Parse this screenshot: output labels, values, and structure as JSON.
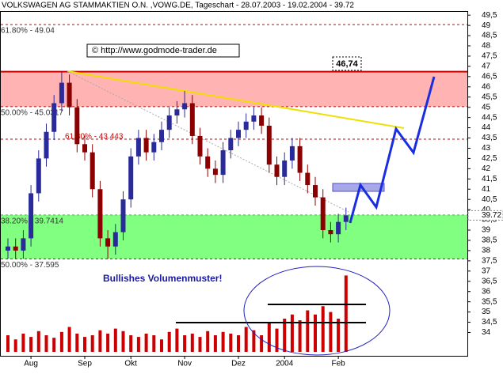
{
  "chart_data": {
    "type": "candlestick",
    "title": "VOLKSWAGEN AG STAMMAKTIEN O.N. ,VOWG.DE, Tageschart - 28.07.2003 - 19.02.2004 - 39.72",
    "copyright": "© http://www.godmode-trader.de",
    "annotation": "Bullishes Volumenmuster!",
    "target_label": "46,74",
    "last_value": 39.72,
    "up_color": "#2a2a9a",
    "down_color": "#8b0000",
    "volume_color": "#cc0000",
    "open": [
      38.0,
      38.2,
      38.0,
      38.6,
      40.8,
      42.5,
      43.8,
      45.2,
      46.2,
      45.0,
      43.2,
      42.8,
      41.0,
      38.6,
      38.2,
      38.9,
      40.5,
      42.6,
      43.5,
      42.8,
      43.3,
      43.9,
      44.6,
      44.9,
      45.2,
      43.6,
      42.6,
      42.0,
      41.7,
      42.9,
      43.5,
      43.9,
      44.3,
      44.6,
      44.1,
      42.2,
      41.6,
      42.4,
      43.1,
      41.8,
      41.2,
      40.6,
      39.0,
      38.8,
      39.4
    ],
    "high": [
      38.6,
      38.6,
      39.0,
      41.2,
      42.9,
      44.2,
      45.6,
      46.74,
      46.6,
      45.4,
      43.6,
      43.2,
      41.4,
      39.0,
      39.3,
      40.9,
      43.0,
      43.9,
      43.9,
      43.7,
      44.3,
      45.0,
      45.3,
      45.8,
      45.6,
      44.0,
      43.0,
      42.4,
      43.3,
      43.9,
      44.3,
      44.7,
      45.0,
      45.0,
      44.5,
      42.6,
      42.8,
      43.5,
      43.5,
      42.2,
      41.6,
      41.0,
      39.4,
      39.8,
      40.1
    ],
    "low": [
      37.6,
      37.6,
      37.6,
      38.2,
      40.4,
      42.1,
      43.4,
      44.8,
      44.6,
      42.8,
      42.4,
      40.6,
      38.2,
      37.6,
      37.8,
      38.5,
      40.1,
      42.2,
      42.4,
      42.4,
      42.9,
      43.5,
      44.2,
      44.5,
      43.2,
      42.2,
      41.6,
      41.3,
      41.3,
      42.5,
      43.1,
      43.5,
      43.9,
      43.7,
      41.8,
      41.2,
      41.2,
      42.0,
      41.4,
      40.8,
      40.2,
      38.6,
      38.4,
      38.4,
      39.0
    ],
    "close": [
      38.2,
      38.0,
      38.6,
      40.8,
      42.5,
      43.8,
      45.2,
      46.2,
      45.0,
      43.2,
      42.8,
      41.0,
      38.6,
      38.2,
      38.9,
      40.5,
      42.6,
      43.5,
      42.8,
      43.3,
      43.9,
      44.6,
      44.9,
      45.2,
      43.6,
      42.6,
      42.0,
      41.7,
      42.9,
      43.5,
      43.9,
      44.3,
      44.6,
      44.1,
      42.2,
      41.6,
      42.4,
      43.1,
      41.8,
      41.2,
      40.6,
      39.0,
      38.8,
      39.4,
      39.72
    ],
    "volume": [
      20,
      15,
      22,
      18,
      25,
      20,
      17,
      24,
      30,
      22,
      18,
      20,
      26,
      22,
      28,
      25,
      20,
      18,
      22,
      20,
      15,
      24,
      28,
      20,
      22,
      18,
      25,
      20,
      24,
      22,
      20,
      30,
      26,
      20,
      35,
      28,
      40,
      45,
      38,
      50,
      45,
      55,
      48,
      40,
      92
    ],
    "volume_lim": [
      0,
      100
    ],
    "xticks": [
      {
        "value": 3,
        "label": "Aug"
      },
      {
        "value": 10,
        "label": "Sep"
      },
      {
        "value": 16,
        "label": "Okt"
      },
      {
        "value": 23,
        "label": "Nov"
      },
      {
        "value": 30,
        "label": "Dez"
      },
      {
        "value": 36,
        "label": "2004"
      },
      {
        "value": 43,
        "label": "Feb"
      }
    ],
    "ylim": [
      32.86,
      49.7
    ],
    "yticks": [
      {
        "value": 49.5,
        "label": "49,5"
      },
      49,
      {
        "value": 48.5,
        "label": "48,5"
      },
      48,
      {
        "value": 47.5,
        "label": "47,5"
      },
      47,
      {
        "value": 46.5,
        "label": "46,5"
      },
      46,
      {
        "value": 45.5,
        "label": "45,5"
      },
      45,
      {
        "value": 44.5,
        "label": "44,5"
      },
      44,
      {
        "value": 43.5,
        "label": "43,5"
      },
      43,
      {
        "value": 42.5,
        "label": "42,5"
      },
      42,
      {
        "value": 41.5,
        "label": "41,5"
      },
      41,
      {
        "value": 40.5,
        "label": "40,5"
      },
      40,
      {
        "value": 39.5,
        "label": "39,5"
      },
      39,
      {
        "value": 38.5,
        "label": "38,5"
      },
      38,
      {
        "value": 37.5,
        "label": "37,5"
      },
      37,
      {
        "value": 36.5,
        "label": "36,5"
      },
      36,
      {
        "value": 35.5,
        "label": "35,5"
      },
      35,
      {
        "value": 34.5,
        "label": "34,5"
      },
      34
    ],
    "bands": [
      {
        "from": 45.0317,
        "to": 46.74,
        "color": "#ffb3b3"
      },
      {
        "from": 37.595,
        "to": 39.7414,
        "color": "#80ff80"
      }
    ],
    "levels": [
      {
        "value": 49.04,
        "label": "61.80% - 49.04",
        "color": "#cc0000"
      },
      {
        "value": 46.74,
        "color": "#cc0000"
      },
      {
        "value": 45.0317,
        "label": "50.00% - 45.0317",
        "color": "#cc0000"
      },
      {
        "value": 43.443,
        "label": "61.80% - 43.443",
        "color": "#cc0000"
      },
      {
        "value": 39.7414,
        "label": "38.20% - 39.7414",
        "color": "#888888"
      },
      {
        "value": 37.595,
        "label": "50.00% - 37.595",
        "color": "#cc0000"
      }
    ]
  }
}
